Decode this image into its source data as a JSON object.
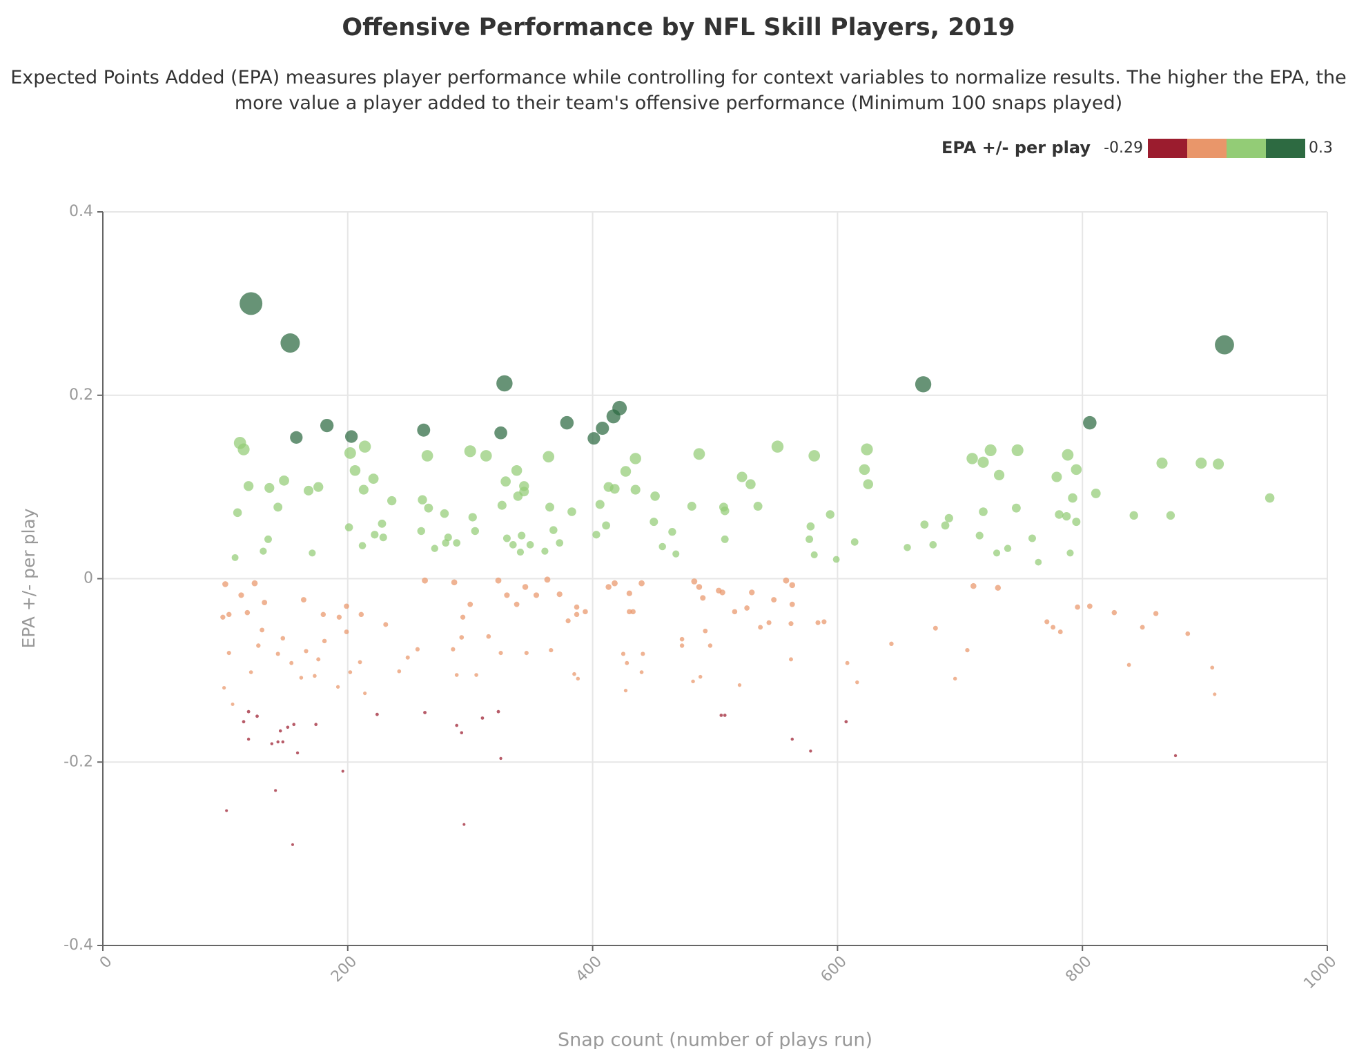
{
  "chart_data": {
    "type": "scatter",
    "title": "Offensive Performance by NFL Skill Players, 2019",
    "subtitle": "Expected Points Added (EPA) measures player performance while controlling for context variables to normalize results. The higher the EPA, the more value a player added to their team's offensive performance (Minimum 100 snaps played)",
    "x_label": "Snap count (number of plays run)",
    "y_label": "EPA +/- per play",
    "legend": {
      "title": "EPA +/- per play",
      "min": -0.29,
      "max": 0.3,
      "colors": [
        "#9b1c2e",
        "#e9966a",
        "#93cc76",
        "#2d6a41"
      ]
    },
    "xlim": [
      0,
      1000
    ],
    "xticks": [
      0,
      200,
      400,
      600,
      800,
      1000
    ],
    "ylim": [
      -0.4,
      0.4
    ],
    "yticks": [
      -0.4,
      -0.2,
      0,
      0.2,
      0.4
    ],
    "grid": true,
    "x": [
      121,
      153,
      328,
      916,
      670,
      158,
      183,
      203,
      262,
      325,
      379,
      401,
      408,
      417,
      422,
      806,
      112,
      115,
      119,
      110,
      136,
      148,
      143,
      168,
      176,
      202,
      214,
      206,
      221,
      213,
      236,
      265,
      261,
      266,
      279,
      300,
      313,
      302,
      329,
      338,
      344,
      344,
      339,
      326,
      364,
      365,
      383,
      406,
      413,
      418,
      427,
      435,
      435,
      451,
      487,
      481,
      522,
      529,
      507,
      508,
      535,
      551,
      581,
      594,
      622,
      624,
      625,
      691,
      710,
      719,
      725,
      732,
      747,
      746,
      719,
      779,
      788,
      795,
      792,
      781,
      787,
      795,
      811,
      865,
      897,
      911,
      953,
      842,
      872,
      201,
      228,
      222,
      260,
      282,
      304,
      330,
      342,
      368,
      403,
      411,
      450,
      465,
      578,
      577,
      614,
      671,
      678,
      688,
      716,
      759,
      135,
      131,
      108,
      212,
      229,
      271,
      280,
      289,
      335,
      341,
      349,
      361,
      373,
      457,
      468,
      508,
      657,
      730,
      739,
      790,
      764,
      171,
      581,
      599,
      100,
      98,
      103,
      103,
      113,
      118,
      132,
      130,
      127,
      147,
      124,
      99,
      106,
      121,
      143,
      164,
      166,
      154,
      162,
      173,
      176,
      180,
      181,
      193,
      199,
      199,
      211,
      202,
      210,
      192,
      214,
      231,
      242,
      249,
      257,
      263,
      287,
      286,
      294,
      289,
      293,
      300,
      305,
      315,
      323,
      325,
      330,
      338,
      345,
      346,
      354,
      363,
      366,
      373,
      380,
      387,
      387,
      394,
      385,
      388,
      413,
      418,
      430,
      425,
      428,
      427,
      433,
      440,
      441,
      440,
      430,
      473,
      473,
      483,
      487,
      490,
      492,
      496,
      482,
      488,
      503,
      506,
      516,
      526,
      520,
      530,
      537,
      544,
      548,
      558,
      563,
      563,
      562,
      562,
      584,
      589,
      608,
      616,
      644,
      680,
      706,
      696,
      711,
      731,
      771,
      776,
      782,
      796,
      806,
      826,
      849,
      838,
      860,
      886,
      906,
      908,
      101,
      115,
      119,
      119,
      126,
      138,
      143,
      147,
      145,
      151,
      156,
      159,
      141,
      155,
      174,
      196,
      224,
      263,
      289,
      293,
      310,
      323,
      325,
      295,
      505,
      508,
      563,
      578,
      607,
      876
    ],
    "values": [
      0.3,
      0.257,
      0.213,
      0.255,
      0.212,
      0.154,
      0.167,
      0.155,
      0.162,
      0.159,
      0.17,
      0.153,
      0.164,
      0.177,
      0.186,
      0.17,
      0.148,
      0.141,
      0.101,
      0.072,
      0.099,
      0.107,
      0.078,
      0.096,
      0.1,
      0.137,
      0.144,
      0.118,
      0.109,
      0.097,
      0.085,
      0.134,
      0.086,
      0.077,
      0.071,
      0.139,
      0.134,
      0.067,
      0.106,
      0.118,
      0.101,
      0.095,
      0.09,
      0.08,
      0.133,
      0.078,
      0.073,
      0.081,
      0.1,
      0.098,
      0.117,
      0.131,
      0.097,
      0.09,
      0.136,
      0.079,
      0.111,
      0.103,
      0.078,
      0.074,
      0.079,
      0.144,
      0.134,
      0.07,
      0.119,
      0.141,
      0.103,
      0.066,
      0.131,
      0.127,
      0.14,
      0.113,
      0.14,
      0.077,
      0.073,
      0.111,
      0.135,
      0.119,
      0.088,
      0.07,
      0.068,
      0.062,
      0.093,
      0.126,
      0.126,
      0.125,
      0.088,
      0.069,
      0.069,
      0.056,
      0.06,
      0.048,
      0.052,
      0.045,
      0.052,
      0.044,
      0.047,
      0.053,
      0.048,
      0.058,
      0.062,
      0.051,
      0.057,
      0.043,
      0.04,
      0.059,
      0.037,
      0.058,
      0.047,
      0.044,
      0.043,
      0.03,
      0.023,
      0.036,
      0.045,
      0.033,
      0.039,
      0.039,
      0.037,
      0.029,
      0.037,
      0.03,
      0.039,
      0.035,
      0.027,
      0.043,
      0.034,
      0.028,
      0.033,
      0.028,
      0.018,
      0.028,
      0.026,
      0.021,
      -0.006,
      -0.042,
      -0.039,
      -0.081,
      -0.018,
      -0.037,
      -0.026,
      -0.056,
      -0.073,
      -0.065,
      -0.005,
      -0.119,
      -0.137,
      -0.102,
      -0.082,
      -0.023,
      -0.079,
      -0.092,
      -0.108,
      -0.106,
      -0.088,
      -0.039,
      -0.068,
      -0.042,
      -0.03,
      -0.058,
      -0.039,
      -0.102,
      -0.091,
      -0.118,
      -0.125,
      -0.05,
      -0.101,
      -0.086,
      -0.077,
      -0.002,
      -0.004,
      -0.077,
      -0.042,
      -0.105,
      -0.064,
      -0.028,
      -0.105,
      -0.063,
      -0.002,
      -0.081,
      -0.018,
      -0.028,
      -0.009,
      -0.081,
      -0.018,
      -0.001,
      -0.078,
      -0.017,
      -0.046,
      -0.031,
      -0.039,
      -0.036,
      -0.104,
      -0.109,
      -0.009,
      -0.005,
      -0.016,
      -0.082,
      -0.092,
      -0.122,
      -0.036,
      -0.005,
      -0.082,
      -0.102,
      -0.036,
      -0.066,
      -0.073,
      -0.003,
      -0.009,
      -0.021,
      -0.057,
      -0.073,
      -0.112,
      -0.107,
      -0.013,
      -0.015,
      -0.036,
      -0.032,
      -0.116,
      -0.015,
      -0.053,
      -0.048,
      -0.023,
      -0.002,
      -0.007,
      -0.028,
      -0.049,
      -0.088,
      -0.048,
      -0.047,
      -0.092,
      -0.113,
      -0.071,
      -0.054,
      -0.078,
      -0.109,
      -0.008,
      -0.01,
      -0.047,
      -0.053,
      -0.058,
      -0.031,
      -0.03,
      -0.037,
      -0.053,
      -0.094,
      -0.038,
      -0.06,
      -0.097,
      -0.126,
      -0.253,
      -0.156,
      -0.145,
      -0.175,
      -0.15,
      -0.18,
      -0.178,
      -0.178,
      -0.166,
      -0.162,
      -0.159,
      -0.19,
      -0.231,
      -0.29,
      -0.159,
      -0.21,
      -0.148,
      -0.146,
      -0.16,
      -0.168,
      -0.152,
      -0.145,
      -0.196,
      -0.268,
      -0.149,
      -0.149,
      -0.175,
      -0.188,
      -0.156,
      -0.193
    ]
  }
}
